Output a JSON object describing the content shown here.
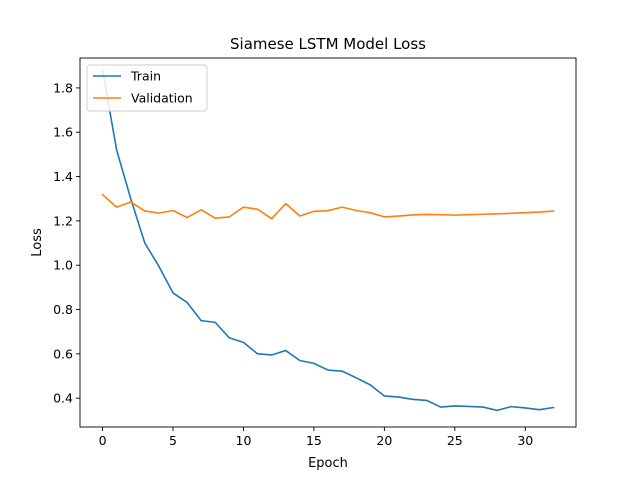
{
  "chart_data": {
    "type": "line",
    "title": "Siamese LSTM Model Loss",
    "xlabel": "Epoch",
    "ylabel": "Loss",
    "xlim": [
      -1.6,
      33.6
    ],
    "ylim": [
      0.27,
      1.935
    ],
    "xticks": [
      0,
      5,
      10,
      15,
      20,
      25,
      30
    ],
    "yticks": [
      0.4,
      0.6,
      0.8,
      1.0,
      1.2,
      1.4,
      1.6,
      1.8
    ],
    "ytick_labels": [
      "0.4",
      "0.6",
      "0.8",
      "1.0",
      "1.2",
      "1.4",
      "1.6",
      "1.8"
    ],
    "grid": false,
    "legend_position": "upper-left",
    "x": [
      0,
      1,
      2,
      3,
      4,
      5,
      6,
      7,
      8,
      9,
      10,
      11,
      12,
      13,
      14,
      15,
      16,
      17,
      18,
      19,
      20,
      21,
      22,
      23,
      24,
      25,
      26,
      27,
      28,
      29,
      30,
      31,
      32
    ],
    "series": [
      {
        "name": "Train",
        "color": "#1f77b4",
        "values": [
          1.88,
          1.52,
          1.3,
          1.1,
          0.995,
          0.875,
          0.832,
          0.75,
          0.742,
          0.672,
          0.652,
          0.6,
          0.595,
          0.615,
          0.57,
          0.557,
          0.527,
          0.522,
          0.492,
          0.46,
          0.41,
          0.405,
          0.395,
          0.39,
          0.36,
          0.365,
          0.363,
          0.36,
          0.345,
          0.362,
          0.356,
          0.348,
          0.358
        ]
      },
      {
        "name": "Validation",
        "color": "#ff7f0e",
        "values": [
          1.318,
          1.262,
          1.285,
          1.245,
          1.235,
          1.247,
          1.215,
          1.25,
          1.212,
          1.218,
          1.262,
          1.253,
          1.21,
          1.278,
          1.222,
          1.243,
          1.246,
          1.262,
          1.247,
          1.237,
          1.218,
          1.222,
          1.227,
          1.229,
          1.228,
          1.226,
          1.228,
          1.23,
          1.232,
          1.234,
          1.237,
          1.24,
          1.244
        ]
      }
    ]
  }
}
